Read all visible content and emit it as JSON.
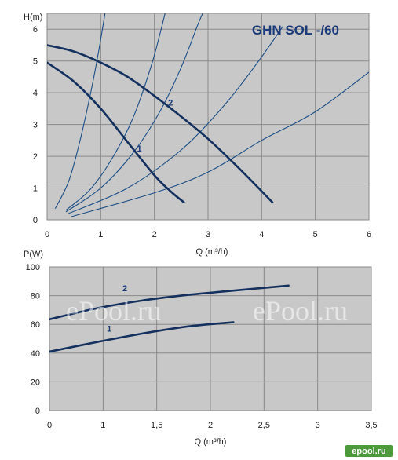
{
  "colors": {
    "plot_bg": "#c8c8c8",
    "grid": "#8a8a8a",
    "pump_curve": "#14305e",
    "system_curve": "#1d4f86",
    "title": "#1a3a7a",
    "logo_bg": "#4c9a3c"
  },
  "watermark": {
    "text": "ePool.ru",
    "left_fragment": "u",
    "logo": "epool.ru"
  },
  "chart_data": [
    {
      "type": "line",
      "title": "GHN SOL -/60",
      "xlabel": "Q (m³/h)",
      "ylabel": "H(m)",
      "xlim": [
        0,
        6
      ],
      "ylim": [
        0,
        6.5
      ],
      "xticks": [
        "0",
        "1",
        "2",
        "3",
        "4",
        "5",
        "6"
      ],
      "yticks": [
        "0",
        "1",
        "2",
        "3",
        "4",
        "5",
        "6"
      ],
      "grid": true,
      "series": [
        {
          "name": "1",
          "points": [
            [
              0,
              4.95
            ],
            [
              0.5,
              4.35
            ],
            [
              1.0,
              3.5
            ],
            [
              1.5,
              2.45
            ],
            [
              2.0,
              1.4
            ],
            [
              2.3,
              0.9
            ],
            [
              2.55,
              0.55
            ]
          ]
        },
        {
          "name": "2",
          "points": [
            [
              0,
              5.5
            ],
            [
              0.5,
              5.3
            ],
            [
              1.0,
              4.95
            ],
            [
              1.5,
              4.5
            ],
            [
              2.0,
              3.9
            ],
            [
              2.5,
              3.25
            ],
            [
              3.0,
              2.55
            ],
            [
              3.5,
              1.75
            ],
            [
              4.0,
              0.9
            ],
            [
              4.2,
              0.55
            ]
          ]
        }
      ],
      "system_curves": [
        {
          "points": [
            [
              0.15,
              0.35
            ],
            [
              0.4,
              1.2
            ],
            [
              0.6,
              2.4
            ],
            [
              0.8,
              3.9
            ],
            [
              0.95,
              5.2
            ],
            [
              1.08,
              6.5
            ]
          ]
        },
        {
          "points": [
            [
              0.35,
              0.3
            ],
            [
              0.8,
              0.95
            ],
            [
              1.2,
              1.9
            ],
            [
              1.6,
              3.2
            ],
            [
              1.95,
              4.9
            ],
            [
              2.2,
              6.5
            ]
          ]
        },
        {
          "points": [
            [
              0.35,
              0.25
            ],
            [
              1.0,
              1.0
            ],
            [
              1.6,
              2.1
            ],
            [
              2.1,
              3.4
            ],
            [
              2.5,
              4.8
            ],
            [
              2.8,
              6.1
            ],
            [
              2.9,
              6.5
            ]
          ]
        },
        {
          "points": [
            [
              0.4,
              0.2
            ],
            [
              1.5,
              1.0
            ],
            [
              2.5,
              2.2
            ],
            [
              3.3,
              3.6
            ],
            [
              3.9,
              4.9
            ],
            [
              4.4,
              6.1
            ]
          ]
        },
        {
          "points": [
            [
              0.45,
              0.1
            ],
            [
              2.0,
              0.85
            ],
            [
              3.0,
              1.5
            ],
            [
              4.0,
              2.5
            ],
            [
              5.0,
              3.4
            ],
            [
              6.0,
              4.65
            ]
          ]
        }
      ],
      "labels": [
        {
          "text": "1",
          "x": 1.72,
          "y": 2.15
        },
        {
          "text": "2",
          "x": 2.3,
          "y": 3.6
        }
      ]
    },
    {
      "type": "line",
      "xlabel": "Q (m³/h)",
      "ylabel": "P(W)",
      "xlim": [
        0,
        3.5
      ],
      "ylim": [
        0,
        100
      ],
      "xticks": [
        "0",
        "1",
        "1,5",
        "2",
        "2,5",
        "3",
        "3,5"
      ],
      "yticks": [
        "0",
        "20",
        "40",
        "60",
        "80",
        "100"
      ],
      "grid": true,
      "series": [
        {
          "name": "1",
          "points": [
            [
              0,
              41
            ],
            [
              0.5,
              47.5
            ],
            [
              1.0,
              53.5
            ],
            [
              1.5,
              58.5
            ],
            [
              2.0,
              61.5
            ]
          ]
        },
        {
          "name": "2",
          "points": [
            [
              0,
              63.5
            ],
            [
              0.5,
              71
            ],
            [
              1.0,
              76.5
            ],
            [
              1.5,
              80.5
            ],
            [
              2.0,
              83.5
            ],
            [
              2.6,
              87
            ]
          ]
        }
      ],
      "labels": [
        {
          "text": "1",
          "x": 0.65,
          "y": 55
        },
        {
          "text": "2",
          "x": 0.82,
          "y": 83
        }
      ]
    }
  ]
}
